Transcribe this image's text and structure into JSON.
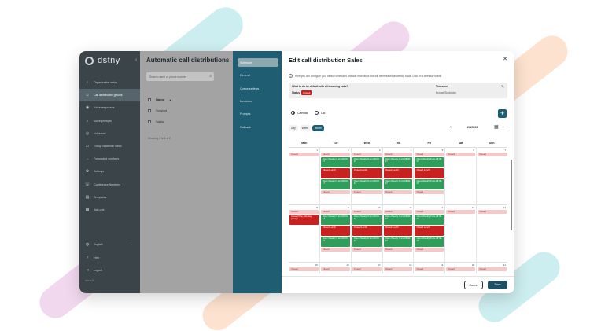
{
  "brand": {
    "logo_text": "dstny"
  },
  "sidebar": {
    "items": [
      {
        "label": "Organization setup",
        "icon": "chevron-left-icon",
        "active": false
      },
      {
        "label": "Call distribution groups",
        "icon": "people-icon",
        "active": true
      },
      {
        "label": "Voice responses",
        "icon": "voice-icon",
        "active": false
      },
      {
        "label": "Voice prompts",
        "icon": "mic-icon",
        "active": false
      },
      {
        "label": "Voicemail",
        "icon": "voicemail-icon",
        "active": false
      },
      {
        "label": "Group voicemail inbox",
        "icon": "inbox-icon",
        "active": false
      },
      {
        "label": "Forwarded numbers",
        "icon": "forward-icon",
        "active": false
      },
      {
        "label": "Settings",
        "icon": "gear-icon",
        "active": false
      },
      {
        "label": "Conference Numbers",
        "icon": "conference-icon",
        "active": false
      },
      {
        "label": "Templates",
        "icon": "template-icon",
        "active": false
      },
      {
        "label": "Add-ons",
        "icon": "addon-icon",
        "active": false
      }
    ],
    "bottom": [
      {
        "label": "English",
        "icon": "globe-icon"
      },
      {
        "label": "Help",
        "icon": "help-icon"
      },
      {
        "label": "Logout",
        "icon": "logout-icon"
      }
    ],
    "version": "v4.r.v.0"
  },
  "list_panel": {
    "title": "Automatic call distributions",
    "search_placeholder": "Search name or phone number",
    "column_header": "Name",
    "rows": [
      "Support",
      "Sales"
    ],
    "rows_info": "Showing 1 to 2 of 2"
  },
  "sub_nav": {
    "items": [
      "Schedule",
      "General",
      "Queue settings",
      "Members",
      "Prompts",
      "Callback"
    ],
    "active_index": 0
  },
  "editor": {
    "title": "Edit call distribution Sales",
    "info": "Here you can configure your default scheduled and add exceptions that will be repeated on weekly basis. Click on a weekday to edit.",
    "question": "What to do by default with all incoming calls?",
    "status_label": "Status",
    "status_value": "Closed",
    "timezone_label": "Timezone",
    "timezone_value": "Europe/Stockholm",
    "view_options": [
      {
        "label": "Calendar",
        "selected": true
      },
      {
        "label": "List",
        "selected": false
      }
    ],
    "range_options": [
      {
        "label": "Day",
        "selected": false
      },
      {
        "label": "Week",
        "selected": false
      },
      {
        "label": "Month",
        "selected": true
      }
    ],
    "current_period": "2025-09",
    "cancel_label": "Cancel",
    "save_label": "Save"
  },
  "calendar": {
    "weekdays": [
      "Mon",
      "Tue",
      "Wed",
      "Thu",
      "Fri",
      "Sat",
      "Sun"
    ],
    "weeks": [
      {
        "days": [
          {
            "num": "1",
            "events": [
              {
                "type": "closed-light",
                "text": "Closed"
              }
            ]
          },
          {
            "num": "2",
            "events": [
              {
                "type": "closed-light",
                "text": "Closed"
              },
              {
                "type": "open",
                "text": "Open Weekly 8 am-08:00-17"
              },
              {
                "type": "closed",
                "text": "Closed Lunch"
              },
              {
                "type": "open",
                "text": "Open Weekly 8 am-08:00-17"
              },
              {
                "type": "closed-light",
                "text": "Closed"
              }
            ]
          },
          {
            "num": "3",
            "events": [
              {
                "type": "closed-light",
                "text": "Closed"
              },
              {
                "type": "open",
                "text": "Open Weekly 8 am-08:00-17"
              },
              {
                "type": "closed",
                "text": "Closed Lunch"
              },
              {
                "type": "open",
                "text": "Open Weekly 8 am-08:00-17"
              },
              {
                "type": "closed-light",
                "text": "Closed"
              }
            ]
          },
          {
            "num": "4",
            "events": [
              {
                "type": "closed-light",
                "text": "Closed"
              },
              {
                "type": "open",
                "text": "Open Weekly 8 am-08:00-17"
              },
              {
                "type": "closed",
                "text": "Closed Lunch"
              },
              {
                "type": "open",
                "text": "Open Weekly 8 am-08:00-17"
              },
              {
                "type": "closed-light",
                "text": "Closed"
              }
            ]
          },
          {
            "num": "5",
            "events": [
              {
                "type": "closed-light",
                "text": "Closed"
              },
              {
                "type": "open",
                "text": "Open Weekly 8 am-08:00-17"
              },
              {
                "type": "closed",
                "text": "Closed Lunch"
              },
              {
                "type": "open",
                "text": "Open Weekly 8 am-08:00-17"
              },
              {
                "type": "closed-light",
                "text": "Closed"
              }
            ]
          },
          {
            "num": "6",
            "events": [
              {
                "type": "closed-light",
                "text": "Closed"
              }
            ]
          },
          {
            "num": "7",
            "events": [
              {
                "type": "closed-light",
                "text": "Closed"
              }
            ]
          }
        ]
      },
      {
        "days": [
          {
            "num": "8",
            "events": [
              {
                "type": "closed-light",
                "text": "Closed"
              },
              {
                "type": "closed",
                "text": "Closed Play, Monday prompt"
              }
            ]
          },
          {
            "num": "9",
            "events": [
              {
                "type": "closed-light",
                "text": "Closed"
              },
              {
                "type": "open",
                "text": "Open Weekly 8 am-08:00-17"
              },
              {
                "type": "closed",
                "text": "Closed Lunch"
              },
              {
                "type": "open",
                "text": "Open Weekly 8 am-08:00-17"
              },
              {
                "type": "closed-light",
                "text": "Closed"
              }
            ]
          },
          {
            "num": "10",
            "events": [
              {
                "type": "closed-light",
                "text": "Closed"
              },
              {
                "type": "open",
                "text": "Open Weekly 8 am-08:00-17"
              },
              {
                "type": "closed",
                "text": "Closed Lunch"
              },
              {
                "type": "open",
                "text": "Open Weekly 8 am-08:00-17"
              },
              {
                "type": "closed-light",
                "text": "Closed"
              }
            ]
          },
          {
            "num": "11",
            "events": [
              {
                "type": "closed-light",
                "text": "Closed"
              },
              {
                "type": "open",
                "text": "Open Weekly 8 am-08:00-17"
              },
              {
                "type": "closed",
                "text": "Closed Lunch"
              },
              {
                "type": "open",
                "text": "Open Weekly 8 am-08:00-17"
              },
              {
                "type": "closed-light",
                "text": "Closed"
              }
            ]
          },
          {
            "num": "12",
            "events": [
              {
                "type": "closed-light",
                "text": "Closed"
              },
              {
                "type": "open",
                "text": "Open Weekly 8 am-08:00-17"
              },
              {
                "type": "closed",
                "text": "Closed Lunch"
              },
              {
                "type": "open",
                "text": "Open Weekly 8 am-08:00-17"
              },
              {
                "type": "closed-light",
                "text": "Closed"
              }
            ]
          },
          {
            "num": "13",
            "events": [
              {
                "type": "closed-light",
                "text": "Closed"
              }
            ]
          },
          {
            "num": "14",
            "events": [
              {
                "type": "closed-light",
                "text": "Closed"
              }
            ]
          }
        ]
      },
      {
        "days": [
          {
            "num": "15",
            "events": [
              {
                "type": "closed-light",
                "text": "Closed"
              }
            ]
          },
          {
            "num": "16",
            "events": [
              {
                "type": "closed-light",
                "text": "Closed"
              }
            ]
          },
          {
            "num": "17",
            "events": [
              {
                "type": "closed-light",
                "text": "Closed"
              }
            ]
          },
          {
            "num": "18",
            "events": [
              {
                "type": "closed-light",
                "text": "Closed"
              }
            ]
          },
          {
            "num": "19",
            "events": [
              {
                "type": "closed-light",
                "text": "Closed"
              }
            ]
          },
          {
            "num": "20",
            "events": [
              {
                "type": "closed-light",
                "text": "Closed"
              }
            ]
          },
          {
            "num": "21",
            "events": [
              {
                "type": "closed-light",
                "text": "Closed"
              }
            ]
          }
        ]
      }
    ]
  },
  "colors": {
    "sidebar_bg": "#3b4549",
    "accent_teal": "#1f5d73",
    "open_green": "#2f9e5a",
    "closed_red": "#c7221f",
    "closed_light": "#f4c9c9"
  }
}
